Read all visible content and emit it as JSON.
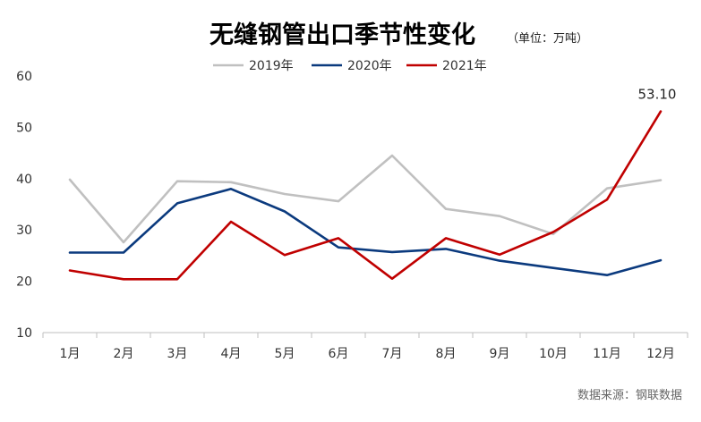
{
  "chart_data": {
    "type": "line",
    "title": "无缝钢管出口季节性变化",
    "unit_note": "（单位：万吨）",
    "categories": [
      "1月",
      "2月",
      "3月",
      "4月",
      "5月",
      "6月",
      "7月",
      "8月",
      "9月",
      "10月",
      "11月",
      "12月"
    ],
    "ylim": [
      10,
      60
    ],
    "yticks": [
      10,
      20,
      30,
      40,
      50,
      60
    ],
    "grid": false,
    "legend_position": "top-center",
    "series": [
      {
        "name": "2019年",
        "color": "#c0c0c0",
        "values": [
          39.8,
          27.6,
          39.5,
          39.3,
          37.0,
          35.6,
          44.5,
          34.1,
          32.7,
          29.2,
          38.1,
          39.7
        ]
      },
      {
        "name": "2020年",
        "color": "#0b3a7e",
        "values": [
          25.6,
          25.6,
          35.2,
          38.0,
          33.6,
          26.6,
          25.7,
          26.3,
          24.0,
          22.6,
          21.2,
          24.1
        ]
      },
      {
        "name": "2021年",
        "color": "#c00000",
        "values": [
          22.1,
          20.4,
          20.4,
          31.6,
          25.1,
          28.4,
          20.5,
          28.4,
          25.2,
          29.6,
          35.9,
          53.1
        ]
      }
    ],
    "annotations": [
      {
        "series": "2021年",
        "index": 11,
        "label": "53.10"
      }
    ],
    "source": "数据来源：钢联数据"
  }
}
